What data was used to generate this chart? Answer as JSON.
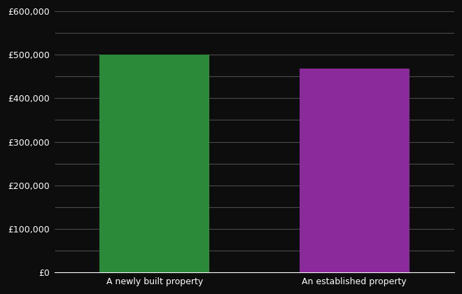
{
  "categories": [
    "A newly built property",
    "An established property"
  ],
  "values": [
    500000,
    469000
  ],
  "bar_colors": [
    "#2a8a3a",
    "#8b2a9a"
  ],
  "background_color": "#0d0d0d",
  "text_color": "#ffffff",
  "grid_color": "#4a4a4a",
  "ylim": [
    0,
    600000
  ],
  "yticks_major": [
    0,
    100000,
    200000,
    300000,
    400000,
    500000,
    600000
  ],
  "yticks_minor": [
    50000,
    150000,
    250000,
    350000,
    450000,
    550000
  ],
  "bar_width": 0.55,
  "figsize": [
    6.6,
    4.2
  ],
  "dpi": 100
}
